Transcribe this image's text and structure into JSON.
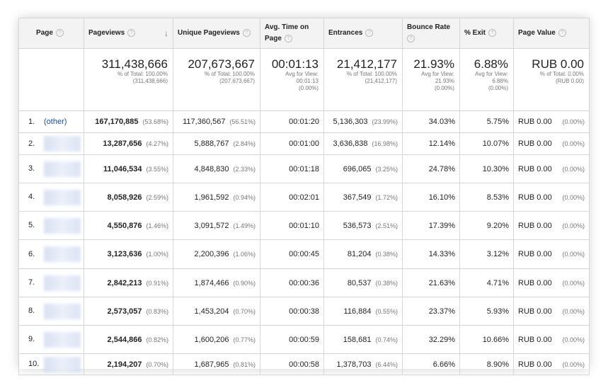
{
  "headers": {
    "page": "Page",
    "pageviews": "Pageviews",
    "unique_pageviews": "Unique Pageviews",
    "avg_time_on_page": "Avg. Time on Page",
    "entrances": "Entrances",
    "bounce_rate": "Bounce Rate",
    "exit": "% Exit",
    "page_value": "Page Value",
    "help_glyph": "?",
    "sort_glyph": "↓"
  },
  "totals": {
    "pageviews": {
      "main": "311,438,666",
      "sub1": "% of Total: 100.00%",
      "sub2": "(311,438,666)"
    },
    "unique_pageviews": {
      "main": "207,673,667",
      "sub1": "% of Total: 100.00%",
      "sub2": "(207,673,667)"
    },
    "avg_time_on_page": {
      "main": "00:01:13",
      "sub1": "Avg for View:",
      "sub2": "00:01:13",
      "sub3": "(0.00%)"
    },
    "entrances": {
      "main": "21,412,177",
      "sub1": "% of Total: 100.00%",
      "sub2": "(21,412,177)"
    },
    "bounce_rate": {
      "main": "21.93%",
      "sub1": "Avg for View:",
      "sub2": "21.93%",
      "sub3": "(0.00%)"
    },
    "exit": {
      "main": "6.88%",
      "sub1": "Avg for View:",
      "sub2": "6.88%",
      "sub3": "(0.00%)"
    },
    "page_value": {
      "main": "RUB 0.00",
      "sub1": "% of Total: 0.00%",
      "sub2": "(RUB 0.00)"
    }
  },
  "rows": [
    {
      "rank": "1.",
      "page": "(other)",
      "pv": "167,170,885",
      "pv_pct": "(53.68%)",
      "upv": "117,360,567",
      "upv_pct": "(56.51%)",
      "time": "00:01:20",
      "ent": "5,136,303",
      "ent_pct": "(23.99%)",
      "bounce": "34.03%",
      "exit": "5.75%",
      "value": "RUB 0.00",
      "value_pct": "(0.00%)"
    },
    {
      "rank": "2.",
      "page": "",
      "pv": "13,287,656",
      "pv_pct": "(4.27%)",
      "upv": "5,888,767",
      "upv_pct": "(2.84%)",
      "time": "00:01:00",
      "ent": "3,636,838",
      "ent_pct": "(16.98%)",
      "bounce": "12.14%",
      "exit": "10.07%",
      "value": "RUB 0.00",
      "value_pct": "(0.00%)"
    },
    {
      "rank": "3.",
      "page": "",
      "pv": "11,046,534",
      "pv_pct": "(3.55%)",
      "upv": "4,848,830",
      "upv_pct": "(2.33%)",
      "time": "00:01:18",
      "ent": "696,065",
      "ent_pct": "(3.25%)",
      "bounce": "24.78%",
      "exit": "10.30%",
      "value": "RUB 0.00",
      "value_pct": "(0.00%)"
    },
    {
      "rank": "4.",
      "page": "",
      "pv": "8,058,926",
      "pv_pct": "(2.59%)",
      "upv": "1,961,592",
      "upv_pct": "(0.94%)",
      "time": "00:02:01",
      "ent": "367,549",
      "ent_pct": "(1.72%)",
      "bounce": "16.10%",
      "exit": "8.53%",
      "value": "RUB 0.00",
      "value_pct": "(0.00%)"
    },
    {
      "rank": "5.",
      "page": "",
      "pv": "4,550,876",
      "pv_pct": "(1.46%)",
      "upv": "3,091,572",
      "upv_pct": "(1.49%)",
      "time": "00:01:10",
      "ent": "536,573",
      "ent_pct": "(2.51%)",
      "bounce": "17.39%",
      "exit": "9.20%",
      "value": "RUB 0.00",
      "value_pct": "(0.00%)"
    },
    {
      "rank": "6.",
      "page": "",
      "pv": "3,123,636",
      "pv_pct": "(1.00%)",
      "upv": "2,200,396",
      "upv_pct": "(1.06%)",
      "time": "00:00:45",
      "ent": "81,204",
      "ent_pct": "(0.38%)",
      "bounce": "14.33%",
      "exit": "3.12%",
      "value": "RUB 0.00",
      "value_pct": "(0.00%)"
    },
    {
      "rank": "7.",
      "page": "",
      "pv": "2,842,213",
      "pv_pct": "(0.91%)",
      "upv": "1,874,466",
      "upv_pct": "(0.90%)",
      "time": "00:00:36",
      "ent": "80,537",
      "ent_pct": "(0.38%)",
      "bounce": "21.63%",
      "exit": "4.71%",
      "value": "RUB 0.00",
      "value_pct": "(0.00%)"
    },
    {
      "rank": "8.",
      "page": "",
      "pv": "2,573,057",
      "pv_pct": "(0.83%)",
      "upv": "1,453,204",
      "upv_pct": "(0.70%)",
      "time": "00:00:38",
      "ent": "116,884",
      "ent_pct": "(0.55%)",
      "bounce": "23.37%",
      "exit": "5.93%",
      "value": "RUB 0.00",
      "value_pct": "(0.00%)"
    },
    {
      "rank": "9.",
      "page": "",
      "pv": "2,544,866",
      "pv_pct": "(0.82%)",
      "upv": "1,600,206",
      "upv_pct": "(0.77%)",
      "time": "00:00:59",
      "ent": "158,681",
      "ent_pct": "(0.74%)",
      "bounce": "32.29%",
      "exit": "10.66%",
      "value": "RUB 0.00",
      "value_pct": "(0.00%)"
    },
    {
      "rank": "10.",
      "page": "",
      "pv": "2,194,207",
      "pv_pct": "(0.70%)",
      "upv": "1,687,965",
      "upv_pct": "(0.81%)",
      "time": "00:00:58",
      "ent": "1,378,703",
      "ent_pct": "(6.44%)",
      "bounce": "6.66%",
      "exit": "8.90%",
      "value": "RUB 0.00",
      "value_pct": "(0.00%)"
    }
  ]
}
